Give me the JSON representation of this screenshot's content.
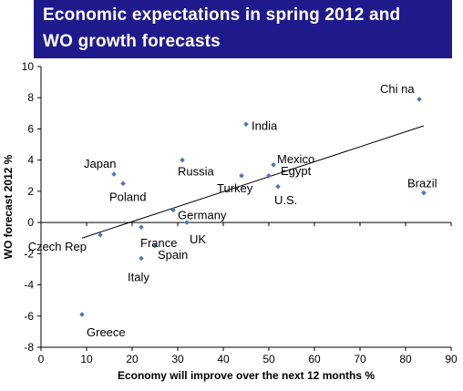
{
  "title_lines": [
    "Economic expectations in spring 2012 and",
    "WO growth forecasts"
  ],
  "colors": {
    "title_bg": "#1f1a8c",
    "title_fg": "#ffffff",
    "point": "#4a78b8",
    "axis": "#000000",
    "trend": "#000000"
  },
  "chart_data": {
    "type": "scatter",
    "title": "Economic expectations in spring 2012 and WO growth forecasts",
    "xlabel": "Economy will improve over the next 12 months %",
    "ylabel": "WO forecast 2012 %",
    "xlim": [
      0,
      90
    ],
    "ylim": [
      -8,
      10
    ],
    "x_ticks": [
      0,
      10,
      20,
      30,
      40,
      50,
      60,
      70,
      80,
      90
    ],
    "y_ticks": [
      -8,
      -6,
      -4,
      -2,
      0,
      2,
      4,
      6,
      8,
      10
    ],
    "grid": false,
    "legend": "none",
    "points": [
      {
        "label": "Chi na",
        "x": 83,
        "y": 7.9
      },
      {
        "label": "India",
        "x": 45,
        "y": 6.3
      },
      {
        "label": "Mexico",
        "x": 51,
        "y": 3.7
      },
      {
        "label": "Egypt",
        "x": 50,
        "y": 3.0
      },
      {
        "label": "Brazil",
        "x": 84,
        "y": 1.9
      },
      {
        "label": "Japan",
        "x": 16,
        "y": 3.1
      },
      {
        "label": "Russia",
        "x": 31,
        "y": 4.0
      },
      {
        "label": "Turkey",
        "x": 44,
        "y": 3.0
      },
      {
        "label": "U.S.",
        "x": 52,
        "y": 2.3
      },
      {
        "label": "Poland",
        "x": 18,
        "y": 2.5
      },
      {
        "label": "Germany",
        "x": 29,
        "y": 0.8
      },
      {
        "label": "UK",
        "x": 32,
        "y": 0.0
      },
      {
        "label": "France",
        "x": 22,
        "y": -0.3
      },
      {
        "label": "Czech Rep",
        "x": 13,
        "y": -0.8
      },
      {
        "label": "Spain",
        "x": 25,
        "y": -1.5
      },
      {
        "label": "Italy",
        "x": 22,
        "y": -2.3
      },
      {
        "label": "Greece",
        "x": 9,
        "y": -5.9
      }
    ],
    "trendline": {
      "x": [
        9,
        84
      ],
      "y": [
        -1.0,
        6.2
      ]
    }
  }
}
